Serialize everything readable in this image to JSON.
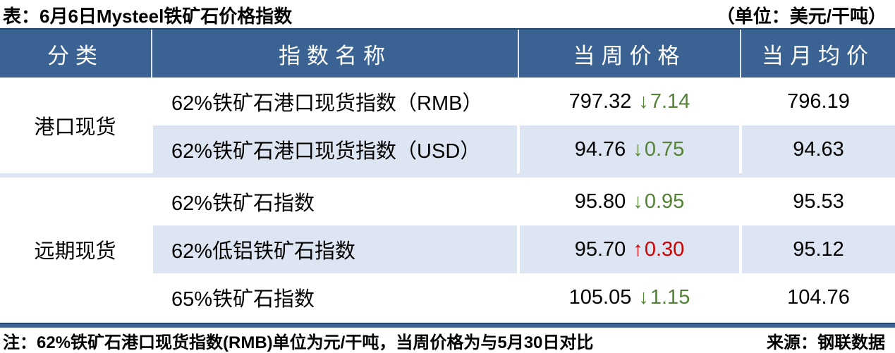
{
  "title": {
    "text": "表：6月6日Mysteel铁矿石价格指数",
    "unit": "（单位：美元/干吨）"
  },
  "table": {
    "headers": [
      "分类",
      "指数名称",
      "当周价格",
      "当月均价"
    ],
    "groups": [
      {
        "category": "港口现货",
        "rows": [
          {
            "name": "62%铁矿石港口现货指数（RMB）",
            "week_price": "797.32",
            "change": "7.14",
            "direction": "down",
            "month_avg": "796.19"
          },
          {
            "name": "62%铁矿石港口现货指数（USD）",
            "week_price": "94.76",
            "change": "0.75",
            "direction": "down",
            "month_avg": "94.63"
          }
        ]
      },
      {
        "category": "远期现货",
        "rows": [
          {
            "name": "62%铁矿石指数",
            "week_price": "95.80",
            "change": "0.95",
            "direction": "down",
            "month_avg": "95.53"
          },
          {
            "name": "62%低铝铁矿石指数",
            "week_price": "95.70",
            "change": "0.30",
            "direction": "up",
            "month_avg": "95.12"
          },
          {
            "name": "65%铁矿石指数",
            "week_price": "105.05",
            "change": "1.15",
            "direction": "down",
            "month_avg": "104.76"
          }
        ]
      }
    ]
  },
  "footer": {
    "note": "注：62%铁矿石港口现货指数(RMB)单位为元/干吨，当周价格为与5月30日对比",
    "source": "来源：钢联数据"
  },
  "icons": {
    "down_arrow": "↓",
    "up_arrow": "↑"
  },
  "colors": {
    "header_bg": "#3A6292",
    "alt_row_bg": "#DCE5F1",
    "down_green": "#548235",
    "up_red": "#D00000",
    "bar_navy": "#24466B"
  },
  "chart_data": {
    "type": "table",
    "title": "表：6月6日Mysteel铁矿石价格指数",
    "unit": "美元/干吨",
    "columns": [
      "分类",
      "指数名称",
      "当周价格",
      "当月均价"
    ],
    "rows": [
      {
        "category": "港口现货",
        "name": "62%铁矿石港口现货指数（RMB）",
        "week_price": 797.32,
        "change": -7.14,
        "month_avg": 796.19
      },
      {
        "category": "港口现货",
        "name": "62%铁矿石港口现货指数（USD）",
        "week_price": 94.76,
        "change": -0.75,
        "month_avg": 94.63
      },
      {
        "category": "远期现货",
        "name": "62%铁矿石指数",
        "week_price": 95.8,
        "change": -0.95,
        "month_avg": 95.53
      },
      {
        "category": "远期现货",
        "name": "62%低铝铁矿石指数",
        "week_price": 95.7,
        "change": 0.3,
        "month_avg": 95.12
      },
      {
        "category": "远期现货",
        "name": "65%铁矿石指数",
        "week_price": 105.05,
        "change": -1.15,
        "month_avg": 104.76
      }
    ],
    "note": "注：62%铁矿石港口现货指数(RMB)单位为元/干吨，当周价格为与5月30日对比",
    "source": "来源：钢联数据"
  }
}
